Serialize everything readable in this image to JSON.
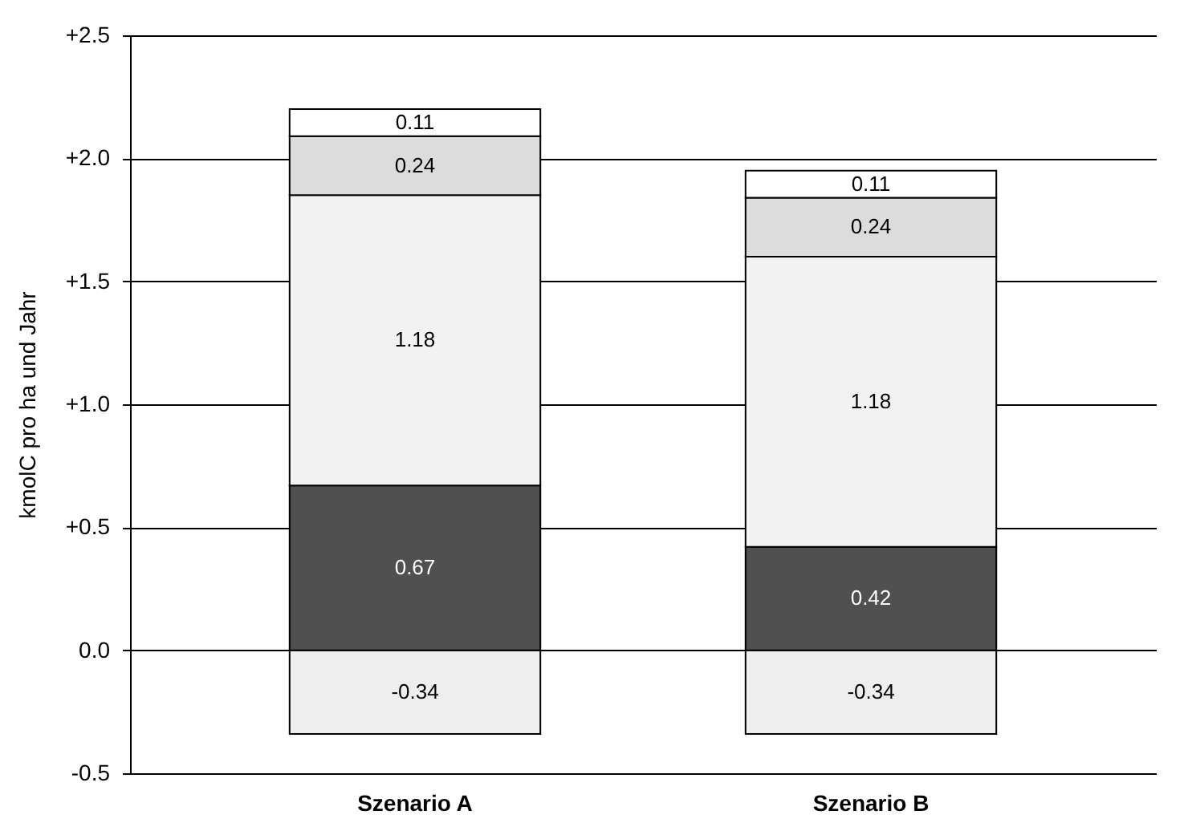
{
  "chart_data": {
    "type": "bar",
    "stacked": true,
    "ylabel": "kmolC pro ha und Jahr",
    "categories": [
      "Szenario A",
      "Szenario B"
    ],
    "series": [
      {
        "color": "#eeeeee",
        "values": [
          -0.34,
          -0.34
        ]
      },
      {
        "color": "#505050",
        "values": [
          0.67,
          0.42
        ]
      },
      {
        "color": "#f2f2f2",
        "values": [
          1.18,
          1.18
        ]
      },
      {
        "color": "#dcdcdc",
        "values": [
          0.24,
          0.24
        ]
      },
      {
        "color": "#ffffff",
        "values": [
          0.11,
          0.11
        ]
      }
    ],
    "ylim": [
      -0.5,
      2.5
    ],
    "yticks": [
      {
        "value": -0.5,
        "label": "-0.5"
      },
      {
        "value": 0,
        "label": "0.0"
      },
      {
        "value": 0.5,
        "label": "+0.5"
      },
      {
        "value": 1,
        "label": "+1.0"
      },
      {
        "value": 1.5,
        "label": "+1.5"
      },
      {
        "value": 2,
        "label": "+2.0"
      },
      {
        "value": 2.5,
        "label": "+2.5"
      }
    ],
    "grid": "y",
    "data_labels": true
  }
}
